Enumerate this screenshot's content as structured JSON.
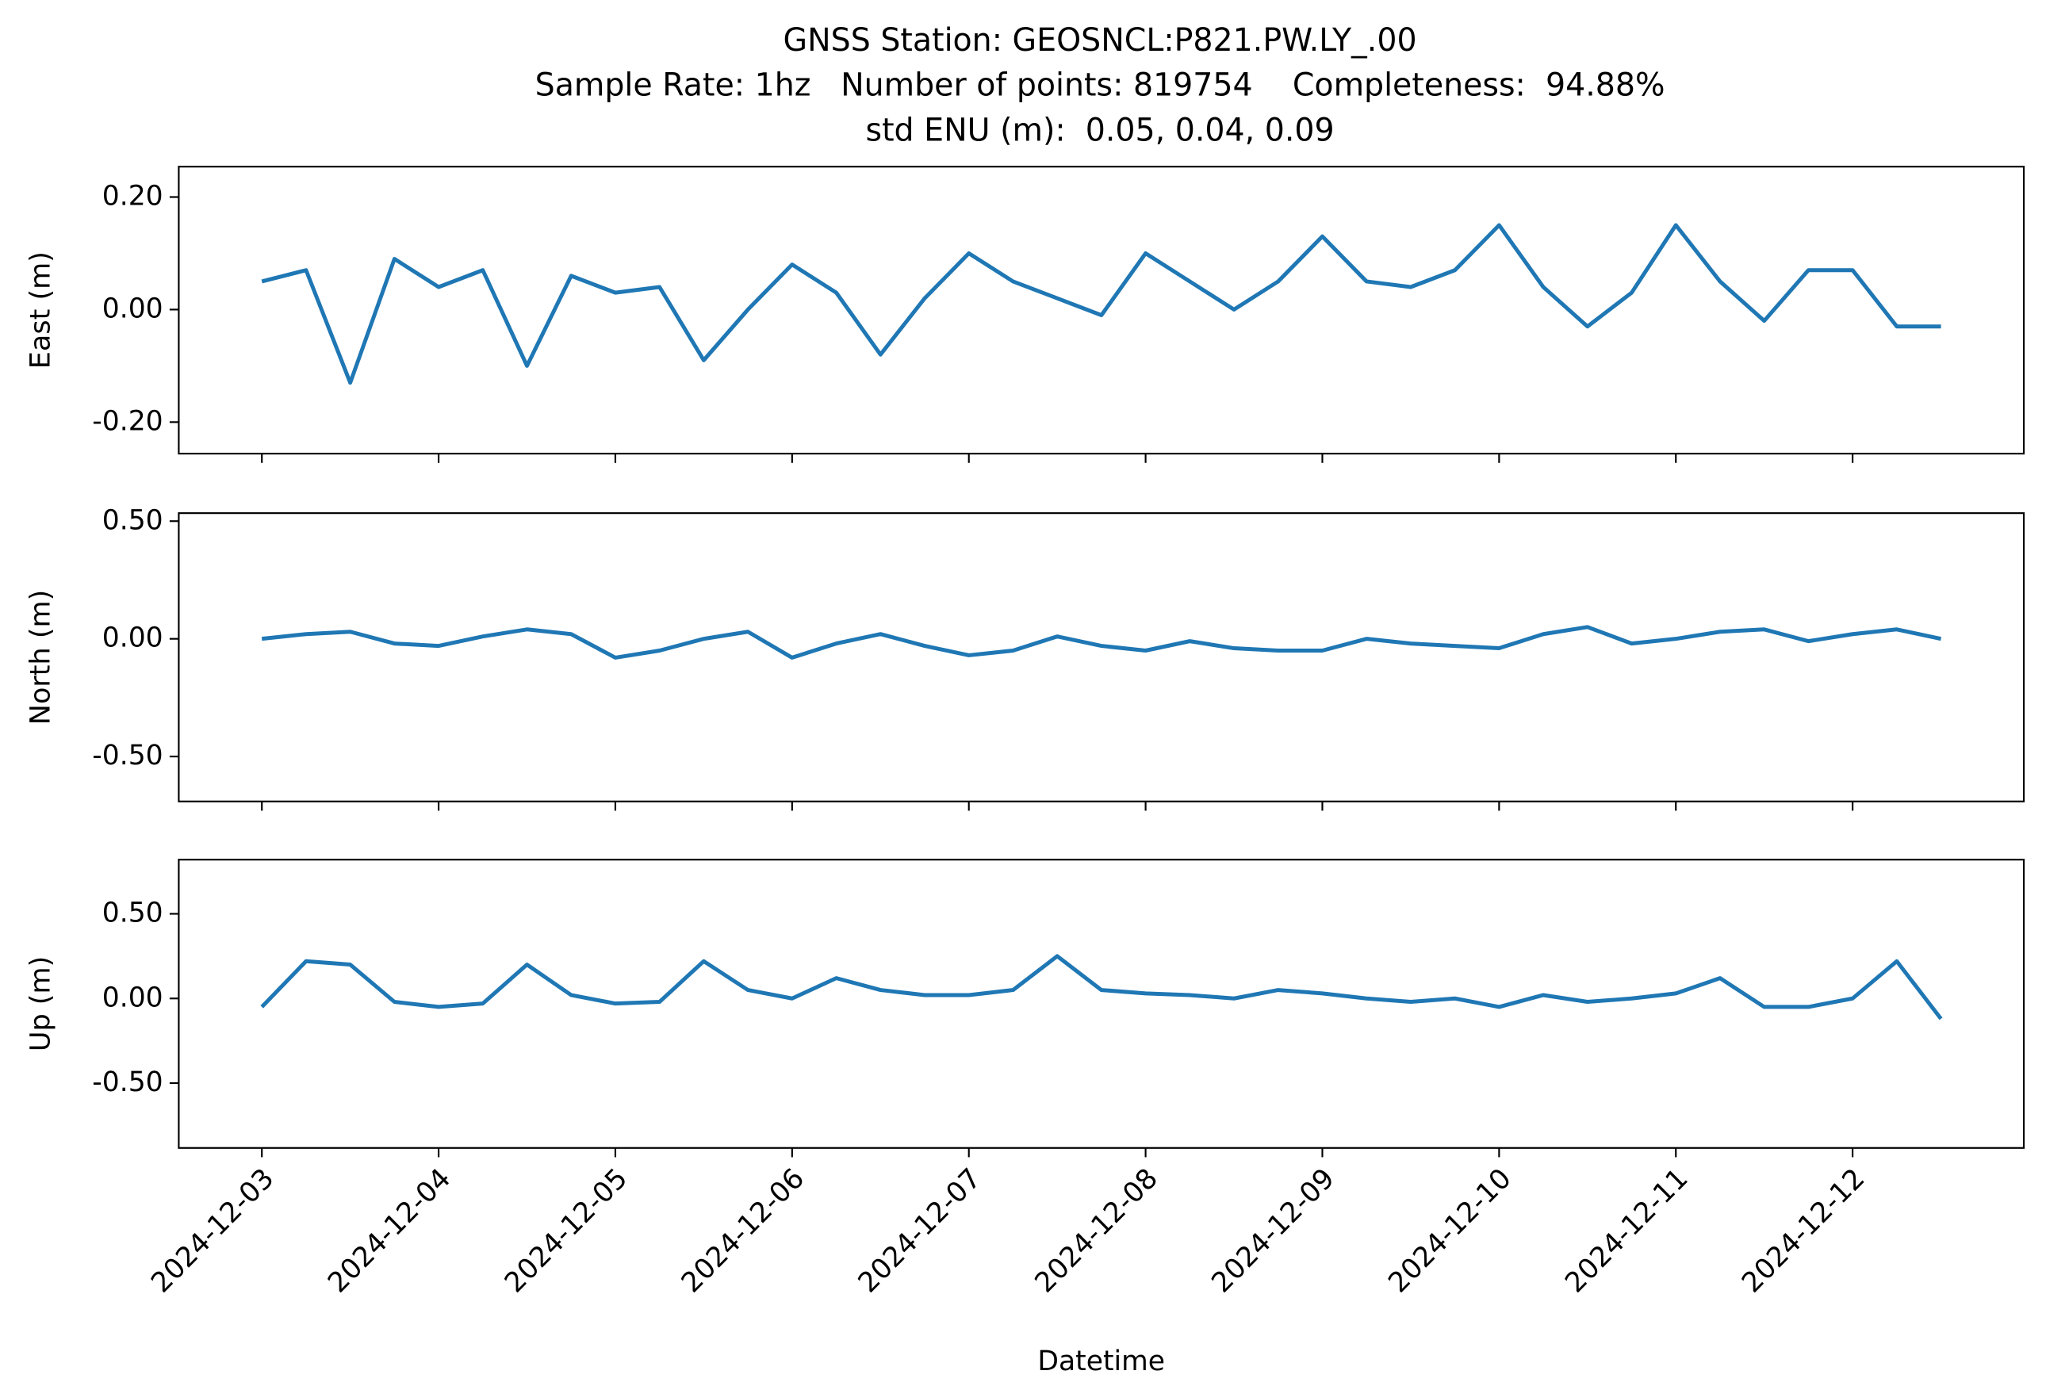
{
  "chart_data": [
    {
      "type": "line",
      "title": [
        "GNSS Station: GEOSNCL:P821.PW.LY_.00",
        "Sample Rate: 1hz   Number of points: 819754    Completeness:  94.88%",
        "std ENU (m):  0.05, 0.04, 0.09"
      ],
      "ylabel": "East (m)",
      "x": [
        "2024-12-03 00:00",
        "2024-12-03 06:00",
        "2024-12-03 12:00",
        "2024-12-03 18:00",
        "2024-12-04 00:00",
        "2024-12-04 06:00",
        "2024-12-04 12:00",
        "2024-12-04 18:00",
        "2024-12-05 00:00",
        "2024-12-05 06:00",
        "2024-12-05 12:00",
        "2024-12-05 18:00",
        "2024-12-06 00:00",
        "2024-12-06 06:00",
        "2024-12-06 12:00",
        "2024-12-06 18:00",
        "2024-12-07 00:00",
        "2024-12-07 06:00",
        "2024-12-07 12:00",
        "2024-12-07 18:00",
        "2024-12-08 00:00",
        "2024-12-08 06:00",
        "2024-12-08 12:00",
        "2024-12-08 18:00",
        "2024-12-09 00:00",
        "2024-12-09 06:00",
        "2024-12-09 12:00",
        "2024-12-09 18:00",
        "2024-12-10 00:00",
        "2024-12-10 06:00",
        "2024-12-10 12:00",
        "2024-12-10 18:00",
        "2024-12-11 00:00",
        "2024-12-11 06:00",
        "2024-12-11 12:00",
        "2024-12-11 18:00",
        "2024-12-12 00:00",
        "2024-12-12 06:00",
        "2024-12-12 12:00"
      ],
      "series": [
        {
          "color": "#1f77b4",
          "values": [
            0.05,
            0.07,
            -0.13,
            0.09,
            0.04,
            0.07,
            -0.1,
            0.06,
            0.03,
            0.04,
            -0.09,
            0.0,
            0.08,
            0.03,
            -0.08,
            0.02,
            0.1,
            0.05,
            0.02,
            -0.01,
            0.1,
            0.05,
            0.0,
            0.05,
            0.13,
            0.05,
            0.04,
            0.07,
            0.15,
            0.04,
            -0.03,
            0.03,
            0.15,
            0.05,
            -0.02,
            0.07,
            0.07,
            -0.03,
            -0.03
          ]
        }
      ],
      "xlim": [
        "2024-12-02 12:43",
        "2024-12-12 23:15"
      ],
      "ylim": [
        -0.256,
        0.254
      ],
      "yticks": [
        {
          "value": -0.2,
          "label": "-0.20"
        },
        {
          "value": 0,
          "label": "0.00"
        },
        {
          "value": 0.2,
          "label": "0.20"
        }
      ]
    },
    {
      "type": "line",
      "ylabel": "North (m)",
      "x": [
        "2024-12-03 00:00",
        "2024-12-03 06:00",
        "2024-12-03 12:00",
        "2024-12-03 18:00",
        "2024-12-04 00:00",
        "2024-12-04 06:00",
        "2024-12-04 12:00",
        "2024-12-04 18:00",
        "2024-12-05 00:00",
        "2024-12-05 06:00",
        "2024-12-05 12:00",
        "2024-12-05 18:00",
        "2024-12-06 00:00",
        "2024-12-06 06:00",
        "2024-12-06 12:00",
        "2024-12-06 18:00",
        "2024-12-07 00:00",
        "2024-12-07 06:00",
        "2024-12-07 12:00",
        "2024-12-07 18:00",
        "2024-12-08 00:00",
        "2024-12-08 06:00",
        "2024-12-08 12:00",
        "2024-12-08 18:00",
        "2024-12-09 00:00",
        "2024-12-09 06:00",
        "2024-12-09 12:00",
        "2024-12-09 18:00",
        "2024-12-10 00:00",
        "2024-12-10 06:00",
        "2024-12-10 12:00",
        "2024-12-10 18:00",
        "2024-12-11 00:00",
        "2024-12-11 06:00",
        "2024-12-11 12:00",
        "2024-12-11 18:00",
        "2024-12-12 00:00",
        "2024-12-12 06:00",
        "2024-12-12 12:00"
      ],
      "series": [
        {
          "color": "#1f77b4",
          "values": [
            0.0,
            0.02,
            0.03,
            -0.02,
            -0.03,
            0.01,
            0.04,
            0.02,
            -0.08,
            -0.05,
            0.0,
            0.03,
            -0.08,
            -0.02,
            0.02,
            -0.03,
            -0.07,
            -0.05,
            0.01,
            -0.03,
            -0.05,
            -0.01,
            -0.04,
            -0.05,
            -0.05,
            0.0,
            -0.02,
            -0.03,
            -0.04,
            0.02,
            0.05,
            -0.02,
            0.0,
            0.03,
            0.04,
            -0.01,
            0.02,
            0.04,
            0.0
          ]
        }
      ],
      "xlim": [
        "2024-12-02 12:43",
        "2024-12-12 23:15"
      ],
      "ylim": [
        -0.691,
        0.534
      ],
      "yticks": [
        {
          "value": -0.5,
          "label": "-0.50"
        },
        {
          "value": 0,
          "label": "0.00"
        },
        {
          "value": 0.5,
          "label": "0.50"
        }
      ]
    },
    {
      "type": "line",
      "ylabel": "Up (m)",
      "xlabel": "Datetime",
      "x": [
        "2024-12-03 00:00",
        "2024-12-03 06:00",
        "2024-12-03 12:00",
        "2024-12-03 18:00",
        "2024-12-04 00:00",
        "2024-12-04 06:00",
        "2024-12-04 12:00",
        "2024-12-04 18:00",
        "2024-12-05 00:00",
        "2024-12-05 06:00",
        "2024-12-05 12:00",
        "2024-12-05 18:00",
        "2024-12-06 00:00",
        "2024-12-06 06:00",
        "2024-12-06 12:00",
        "2024-12-06 18:00",
        "2024-12-07 00:00",
        "2024-12-07 06:00",
        "2024-12-07 12:00",
        "2024-12-07 18:00",
        "2024-12-08 00:00",
        "2024-12-08 06:00",
        "2024-12-08 12:00",
        "2024-12-08 18:00",
        "2024-12-09 00:00",
        "2024-12-09 06:00",
        "2024-12-09 12:00",
        "2024-12-09 18:00",
        "2024-12-10 00:00",
        "2024-12-10 06:00",
        "2024-12-10 12:00",
        "2024-12-10 18:00",
        "2024-12-11 00:00",
        "2024-12-11 06:00",
        "2024-12-11 12:00",
        "2024-12-11 18:00",
        "2024-12-12 00:00",
        "2024-12-12 06:00",
        "2024-12-12 12:00"
      ],
      "series": [
        {
          "color": "#1f77b4",
          "values": [
            -0.05,
            0.22,
            0.2,
            -0.02,
            -0.05,
            -0.03,
            0.2,
            0.02,
            -0.03,
            -0.02,
            0.22,
            0.05,
            0.0,
            0.12,
            0.05,
            0.02,
            0.02,
            0.05,
            0.25,
            0.05,
            0.03,
            0.02,
            0.0,
            0.05,
            0.03,
            0.0,
            -0.02,
            0.0,
            -0.05,
            0.02,
            -0.02,
            0.0,
            0.03,
            0.12,
            -0.05,
            -0.05,
            0.0,
            0.22,
            -0.12
          ]
        }
      ],
      "xlim": [
        "2024-12-02 12:43",
        "2024-12-12 23:15"
      ],
      "xticks": [
        "2024-12-03",
        "2024-12-04",
        "2024-12-05",
        "2024-12-06",
        "2024-12-07",
        "2024-12-08",
        "2024-12-09",
        "2024-12-10",
        "2024-12-11",
        "2024-12-12"
      ],
      "ylim": [
        -0.883,
        0.82
      ],
      "yticks": [
        {
          "value": -0.5,
          "label": "-0.50"
        },
        {
          "value": 0,
          "label": "0.00"
        },
        {
          "value": 0.5,
          "label": "0.50"
        }
      ]
    }
  ]
}
